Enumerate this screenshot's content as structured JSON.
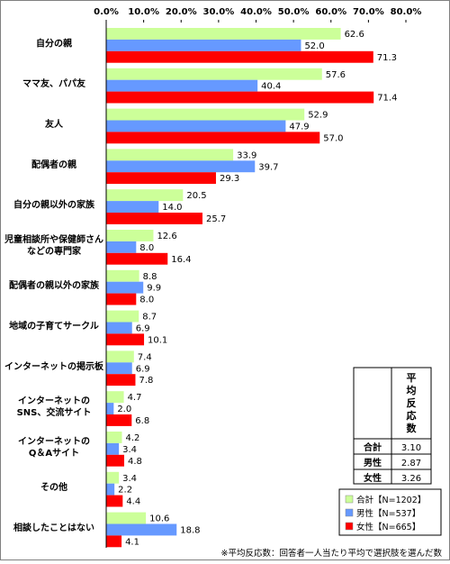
{
  "chart_data": {
    "type": "bar",
    "orientation": "horizontal",
    "categories": [
      "自分の親",
      "ママ友、パパ友",
      "友人",
      "配偶者の親",
      "自分の親以外の家族",
      "児童相談所や保健師さん などの専門家",
      "配偶者の親以外の家族",
      "地域の子育てサークル",
      "インターネットの掲示板",
      "インターネットの SNS、交流サイト",
      "インターネットの Q＆Aサイト",
      "その他",
      "相談したことはない"
    ],
    "series": [
      {
        "name": "合計【N=1202】",
        "color": "#ccff99",
        "values": [
          62.6,
          57.6,
          52.9,
          33.9,
          20.5,
          12.6,
          8.8,
          8.7,
          7.4,
          4.7,
          4.2,
          3.4,
          10.6
        ]
      },
      {
        "name": "男性【N=537】",
        "color": "#6699ff",
        "values": [
          52.0,
          40.4,
          47.9,
          39.7,
          14.0,
          8.0,
          9.9,
          6.9,
          6.9,
          2.0,
          3.4,
          2.2,
          18.8
        ]
      },
      {
        "name": "女性【N=665】",
        "color": "#ff0000",
        "values": [
          71.3,
          71.4,
          57.0,
          29.3,
          25.7,
          16.4,
          8.0,
          10.1,
          7.8,
          6.8,
          4.8,
          4.4,
          4.1
        ]
      }
    ],
    "xlim": [
      0,
      80
    ],
    "xticks": [
      "0.0%",
      "10.0%",
      "20.0%",
      "30.0%",
      "40.0%",
      "50.0%",
      "60.0%",
      "70.0%",
      "80.0%"
    ],
    "grid": false,
    "legend_position": "bottom-right"
  },
  "avg_table": {
    "header": "平均反応数",
    "rows": [
      {
        "label": "合計",
        "value": "3.10"
      },
      {
        "label": "男性",
        "value": "2.87"
      },
      {
        "label": "女性",
        "value": "3.26"
      }
    ]
  },
  "footnote": "※平均反応数：回答者一人当たり平均で選択肢を選んだ数"
}
